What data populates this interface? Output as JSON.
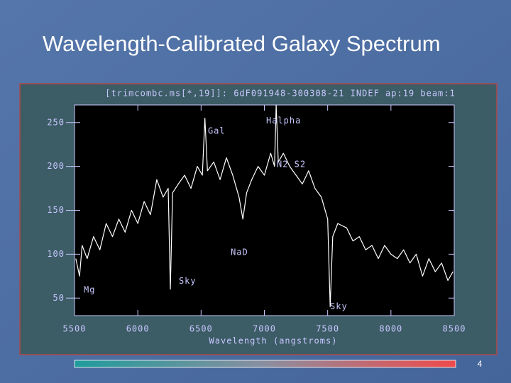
{
  "chart_data": {
    "type": "line",
    "title": "Wavelength-Calibrated Galaxy Spectrum",
    "subtitle": "[trimcombc.ms[*,19]]: 6dF091948-300308-21 INDEF ap:19 beam:1",
    "x_label": "Wavelength (angstroms)",
    "xlim": [
      5500,
      8500
    ],
    "ylim": [
      30,
      270
    ],
    "xticks": [
      5500,
      6000,
      6500,
      7000,
      7500,
      8000,
      8500
    ],
    "yticks": [
      50,
      100,
      150,
      200,
      250
    ],
    "x": [
      5510,
      5540,
      5560,
      5600,
      5650,
      5700,
      5750,
      5800,
      5850,
      5900,
      5950,
      6000,
      6050,
      6100,
      6150,
      6200,
      6240,
      6257,
      6275,
      6320,
      6370,
      6420,
      6470,
      6510,
      6530,
      6550,
      6600,
      6650,
      6700,
      6750,
      6800,
      6830,
      6860,
      6900,
      6950,
      7000,
      7050,
      7080,
      7093,
      7110,
      7150,
      7200,
      7250,
      7300,
      7350,
      7400,
      7450,
      7500,
      7520,
      7540,
      7580,
      7650,
      7700,
      7750,
      7800,
      7850,
      7900,
      7950,
      8000,
      8050,
      8100,
      8150,
      8200,
      8250,
      8300,
      8350,
      8400,
      8450,
      8490
    ],
    "series": [
      {
        "color": "#ffffff",
        "values": [
          95,
          75,
          110,
          95,
          120,
          105,
          135,
          120,
          140,
          125,
          150,
          135,
          160,
          145,
          185,
          165,
          175,
          60,
          170,
          180,
          190,
          175,
          200,
          190,
          255,
          195,
          205,
          185,
          210,
          190,
          165,
          140,
          170,
          185,
          200,
          190,
          215,
          200,
          270,
          205,
          215,
          200,
          190,
          180,
          195,
          175,
          165,
          140,
          40,
          120,
          135,
          130,
          115,
          120,
          105,
          110,
          95,
          110,
          100,
          95,
          105,
          90,
          100,
          75,
          95,
          80,
          90,
          70,
          80
        ]
      }
    ],
    "annotations": [
      {
        "text": "Mg",
        "x": 5573,
        "y": 59
      },
      {
        "text": "Gal",
        "x": 6554,
        "y": 240
      },
      {
        "text": "Halpha",
        "x": 7014,
        "y": 252
      },
      {
        "text": "N2 S2",
        "x": 7098,
        "y": 202
      },
      {
        "text": "NaD",
        "x": 6734,
        "y": 102
      },
      {
        "text": "Sky",
        "x": 6324,
        "y": 69
      },
      {
        "text": "Sky",
        "x": 7519,
        "y": 40
      }
    ]
  },
  "page_number": "4"
}
